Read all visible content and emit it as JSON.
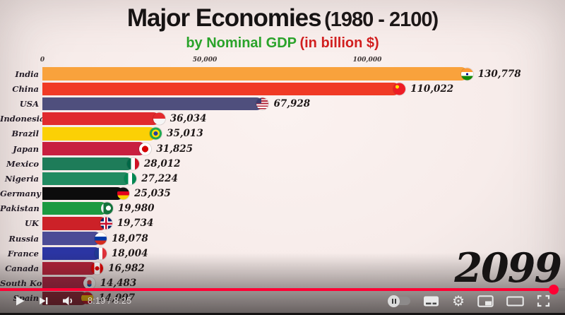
{
  "chart": {
    "title_main": "Major Economies",
    "title_range": "(1980 - 2100)",
    "subtitle_green": "by Nominal GDP",
    "subtitle_red": "(in billion $)",
    "year": "2099",
    "colors": {
      "title": "#161313",
      "subtitle_green": "#2AA32A",
      "subtitle_red": "#D11F1F",
      "background": "#F8EEEC"
    }
  },
  "chart_data": {
    "type": "bar",
    "orientation": "horizontal",
    "title": "Major Economies (1980 - 2100)",
    "subtitle": "by Nominal GDP (in billion $)",
    "year_label": "2099",
    "xlabel": "Nominal GDP (billion $)",
    "xlim": [
      0,
      140000
    ],
    "grid": false,
    "x_ticks": [
      {
        "value": 0,
        "label": "0"
      },
      {
        "value": 50000,
        "label": "50,000"
      },
      {
        "value": 100000,
        "label": "100,000"
      }
    ],
    "rows": [
      {
        "country": "India",
        "value": 130778,
        "label": "130,778",
        "bar_color": "#F9A23C",
        "flag": "india-flag-icon",
        "flag_css": "radial-gradient(circle at 50% 50%, #000080 0 1.5px, rgba(0,0,0,0) 1.5px), linear-gradient(#FF9933 33%, #ffffff 33% 66%, #138808 66%)"
      },
      {
        "country": "China",
        "value": 110022,
        "label": "110,022",
        "bar_color": "#F03A25",
        "flag": "china-flag-icon",
        "flag_css": "radial-gradient(circle at 32% 32%, #FFDE00 0 2.5px, rgba(0,0,0,0) 2.5px), linear-gradient(#EE1C25, #EE1C25)"
      },
      {
        "country": "USA",
        "value": 67928,
        "label": "67,928",
        "bar_color": "#4F4F7D",
        "flag": "usa-flag-icon",
        "flag_css": "linear-gradient(#3C3B6E, #3C3B6E) left top / 7px 8px no-repeat, repeating-linear-gradient(180deg, #B22234 0 1.8px, #ffffff 1.8px 3.6px)"
      },
      {
        "country": "Indonesia",
        "value": 36034,
        "label": "36,034",
        "bar_color": "#E02A2E",
        "flag": "indonesia-flag-icon",
        "flag_css": "linear-gradient(#E32A2E 50%, #f5f5f5 50%)"
      },
      {
        "country": "Brazil",
        "value": 35013,
        "label": "35,013",
        "bar_color": "#FBD005",
        "flag": "brazil-flag-icon",
        "flag_css": "radial-gradient(circle at 50% 50%, #2A3FA0 0 3px, #FFDF00 3px 5.5px, #1FA94E 5.5px)"
      },
      {
        "country": "Japan",
        "value": 31825,
        "label": "31,825",
        "bar_color": "#C81F40",
        "flag": "japan-flag-icon",
        "flag_css": "radial-gradient(circle at 50% 50%, #D40000 0 4.5px, #ffffff 4.5px)"
      },
      {
        "country": "Mexico",
        "value": 28012,
        "label": "28,012",
        "bar_color": "#1E7C59",
        "flag": "mexico-flag-icon",
        "flag_css": "linear-gradient(90deg, #006847 33%, #ffffff 33% 66%, #CE1126 66%)"
      },
      {
        "country": "Nigeria",
        "value": 27224,
        "label": "27,224",
        "bar_color": "#218B61",
        "flag": "nigeria-flag-icon",
        "flag_css": "linear-gradient(90deg, #008751 33%, #ffffff 33% 66%, #008751 66%)"
      },
      {
        "country": "Germany",
        "value": 25035,
        "label": "25,035",
        "bar_color": "#0C0C0C",
        "flag": "germany-flag-icon",
        "flag_css": "linear-gradient(#111111 33%, #E1001F 33% 66%, #F6CF00 66%)"
      },
      {
        "country": "Pakistan",
        "value": 19980,
        "label": "19,980",
        "bar_color": "#1C9A41",
        "flag": "pakistan-flag-icon",
        "flag_css": "radial-gradient(circle at 62% 48%, #ffffff 0 3.5px, rgba(0,0,0,0) 3.5px), linear-gradient(90deg, #eeeeee 0 22%, #14743C 22%)"
      },
      {
        "country": "UK",
        "value": 19734,
        "label": "19,734",
        "bar_color": "#CC2128",
        "flag": "uk-flag-icon",
        "flag_css": "linear-gradient(#C8102E, #C8102E) 50% 0 / 2.5px 100% no-repeat, linear-gradient(#C8102E, #C8102E) 0 50% / 100% 2.5px no-repeat, linear-gradient(#ffffff, #ffffff) 50% 0 / 6px 100% no-repeat, linear-gradient(#ffffff, #ffffff) 0 50% / 100% 6px no-repeat, linear-gradient(#012169, #012169)"
      },
      {
        "country": "Russia",
        "value": 18078,
        "label": "18,078",
        "bar_color": "#4B4B96",
        "flag": "russia-flag-icon",
        "flag_css": "linear-gradient(#ffffff 33%, #0039A6 33% 66%, #D52B1E 66%)"
      },
      {
        "country": "France",
        "value": 18004,
        "label": "18,004",
        "bar_color": "#2B35A3",
        "flag": "france-flag-icon",
        "flag_css": "linear-gradient(90deg, #1F3A93 35%, #ffffff 35% 65%, #E0313A 65%)"
      },
      {
        "country": "Canada",
        "value": 16982,
        "label": "16,982",
        "bar_color": "#B32038",
        "flag": "canada-flag-icon",
        "flag_css": "radial-gradient(circle at 50% 50%, #E00000 0 3px, rgba(0,0,0,0) 3px), linear-gradient(90deg, #E00000 0 27%, #ffffff 27% 73%, #E00000 73%)"
      },
      {
        "country": "South Korea",
        "value": 14483,
        "label": "14,483",
        "bar_color": "#A81F3D",
        "flag": "south-korea-flag-icon",
        "flag_css": "radial-gradient(circle at 50% 42%, #CD2E3A 0 3.2px, rgba(0,0,0,0) 3.2px), radial-gradient(circle at 50% 60%, #0047A0 0 3.2px, rgba(0,0,0,0) 3.2px), linear-gradient(#f2f2f2, #f2f2f2)"
      },
      {
        "country": "Spain",
        "value": 14007,
        "label": "14,007",
        "bar_color": "#8E1E2F",
        "flag": "spain-flag-icon",
        "flag_css": "linear-gradient(#C60B1E 27%, #FFC400 27% 73%, #C60B1E 73%)"
      }
    ]
  },
  "player": {
    "time_current": "8:19",
    "time_separator": " / ",
    "time_duration": "8:25",
    "progress_percent": 98,
    "accent_color": "#FF0033",
    "icons": [
      "play-icon",
      "next-icon",
      "volume-icon",
      "autoplay-toggle",
      "subtitles-icon",
      "settings-gear-icon",
      "miniplayer-icon",
      "theater-mode-icon",
      "fullscreen-icon"
    ],
    "settings_gear_glyph": "⚙"
  }
}
